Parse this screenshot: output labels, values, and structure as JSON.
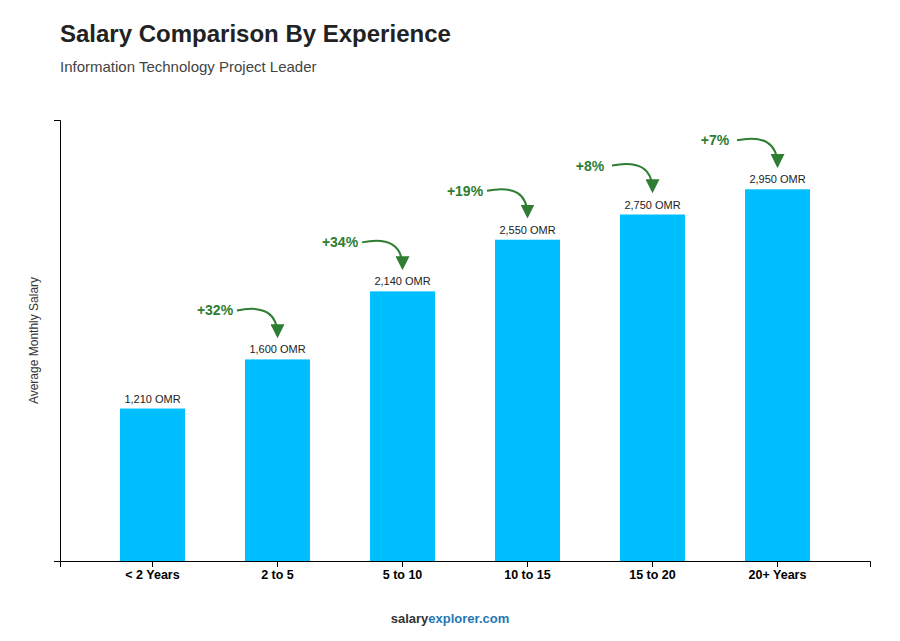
{
  "chart_data": {
    "type": "bar",
    "title": "Salary Comparison By Experience",
    "subtitle": "Information Technology Project Leader",
    "ylabel": "Average Monthly Salary",
    "categories": [
      "< 2 Years",
      "2 to 5",
      "5 to 10",
      "10 to 15",
      "15 to 20",
      "20+ Years"
    ],
    "values": [
      1210,
      1600,
      2140,
      2550,
      2750,
      2950
    ],
    "value_labels": [
      "1,210 OMR",
      "1,600 OMR",
      "2,140 OMR",
      "2,550 OMR",
      "2,750 OMR",
      "2,950 OMR"
    ],
    "data_labels": true,
    "color": "#00bfff",
    "ylim": [
      0,
      3500
    ],
    "tick_labels": "x",
    "grid": false,
    "annotations": [
      {
        "text": "+32%",
        "from": "< 2 Years",
        "to": "2 to 5"
      },
      {
        "text": "+34%",
        "from": "2 to 5",
        "to": "5 to 10"
      },
      {
        "text": "+19%",
        "from": "5 to 10",
        "to": "10 to 15"
      },
      {
        "text": "+8%",
        "from": "10 to 15",
        "to": "15 to 20"
      },
      {
        "text": "+7%",
        "from": "15 to 20",
        "to": "20+ Years"
      }
    ],
    "footer": [
      "salary",
      "explorer.com"
    ]
  }
}
